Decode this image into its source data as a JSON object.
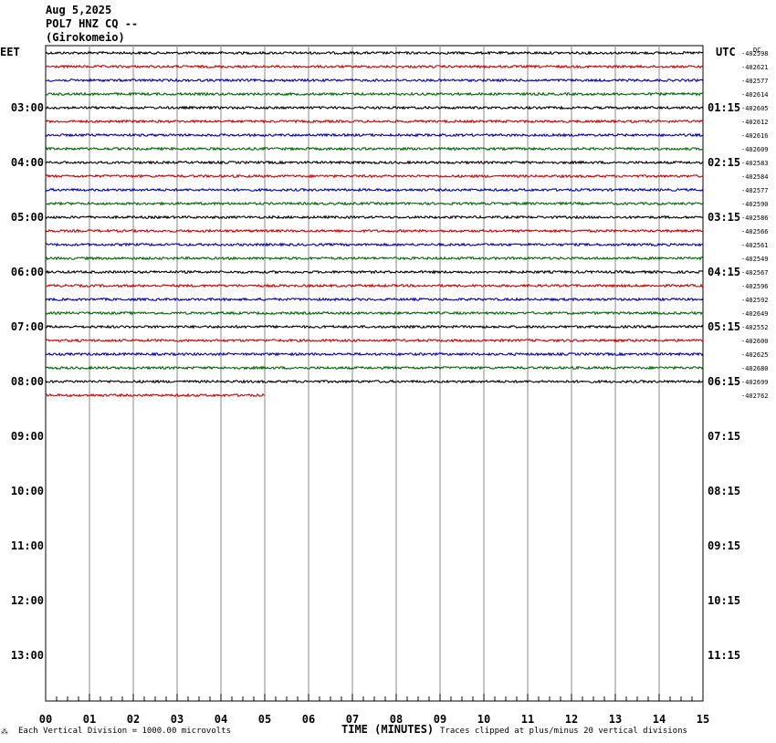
{
  "header": {
    "date": "Aug 5,2025",
    "station": "POL7 HNZ CQ --",
    "location": "(Girokomeio)"
  },
  "footer": {
    "scale_note": "Each Vertical Division = 1000.00 microvolts",
    "xlabel": "TIME (MINUTES)",
    "clip_note": "Traces clipped at plus/minus 20 vertical divisions",
    "corner_mark": "⁂"
  },
  "chart_data": {
    "type": "line",
    "title": "",
    "xlabel": "TIME (MINUTES)",
    "xlim": [
      0,
      15
    ],
    "x_ticks": [
      "00",
      "01",
      "02",
      "03",
      "04",
      "05",
      "06",
      "07",
      "08",
      "09",
      "10",
      "11",
      "12",
      "13",
      "14",
      "15"
    ],
    "left_axis_label": "EET",
    "right_axis_label": "UTC",
    "dc_label": "DC",
    "left_hour_labels": [
      "03:00",
      "04:00",
      "05:00",
      "06:00",
      "07:00",
      "08:00",
      "09:00",
      "10:00",
      "11:00",
      "12:00",
      "13:00"
    ],
    "right_hour_labels": [
      "01:15",
      "02:15",
      "03:15",
      "04:15",
      "05:15",
      "06:15",
      "07:15",
      "08:15",
      "09:15",
      "10:15",
      "11:15"
    ],
    "grid": true,
    "trace_colors": [
      "#000000",
      "#cc0000",
      "#0000aa",
      "#006600"
    ],
    "traces": [
      {
        "offset": -402598,
        "end_minute": 15
      },
      {
        "offset": -402621,
        "end_minute": 15
      },
      {
        "offset": -402577,
        "end_minute": 15
      },
      {
        "offset": -402614,
        "end_minute": 15
      },
      {
        "offset": -402605,
        "end_minute": 15
      },
      {
        "offset": -402612,
        "end_minute": 15
      },
      {
        "offset": -402616,
        "end_minute": 15
      },
      {
        "offset": -402609,
        "end_minute": 15
      },
      {
        "offset": -402583,
        "end_minute": 15
      },
      {
        "offset": -402584,
        "end_minute": 15
      },
      {
        "offset": -402577,
        "end_minute": 15
      },
      {
        "offset": -402590,
        "end_minute": 15
      },
      {
        "offset": -402586,
        "end_minute": 15
      },
      {
        "offset": -402566,
        "end_minute": 15
      },
      {
        "offset": -402561,
        "end_minute": 15
      },
      {
        "offset": -402549,
        "end_minute": 15
      },
      {
        "offset": -402567,
        "end_minute": 15
      },
      {
        "offset": -402596,
        "end_minute": 15
      },
      {
        "offset": -402592,
        "end_minute": 15
      },
      {
        "offset": -402649,
        "end_minute": 15
      },
      {
        "offset": -402552,
        "end_minute": 15
      },
      {
        "offset": -402600,
        "end_minute": 15
      },
      {
        "offset": -402625,
        "end_minute": 15
      },
      {
        "offset": -402680,
        "end_minute": 15
      },
      {
        "offset": -402699,
        "end_minute": 15
      },
      {
        "offset": -402762,
        "end_minute": 5
      }
    ]
  }
}
